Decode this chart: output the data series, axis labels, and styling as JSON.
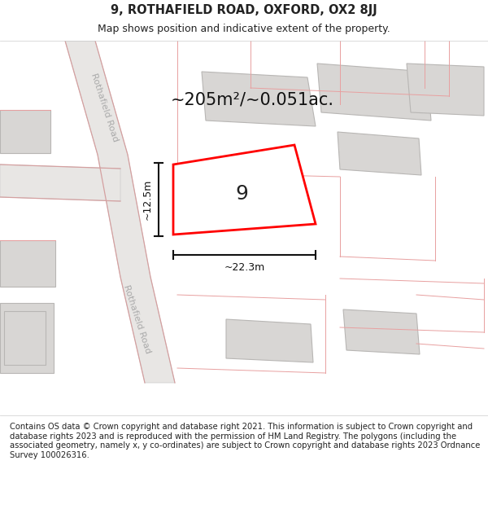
{
  "title": "9, ROTHAFIELD ROAD, OXFORD, OX2 8JJ",
  "subtitle": "Map shows position and indicative extent of the property.",
  "footer": "Contains OS data © Crown copyright and database right 2021. This information is subject to Crown copyright and database rights 2023 and is reproduced with the permission of HM Land Registry. The polygons (including the associated geometry, namely x, y co-ordinates) are subject to Crown copyright and database rights 2023 Ordnance Survey 100026316.",
  "map_bg": "#f5f4f2",
  "title_bg": "#ffffff",
  "footer_bg": "#ffffff",
  "building_fill": "#d8d6d4",
  "building_edge": "#b8b6b4",
  "road_fill": "#e8e6e4",
  "road_edge": "#cccccc",
  "pink_line": "#e8a0a0",
  "plot_color": "#ff0000",
  "plot_label": "9",
  "area_label": "~205m²/~0.051ac.",
  "width_label": "~22.3m",
  "height_label": "~12.5m",
  "road_name_upper": "Rothafield Road",
  "road_name_lower": "Rothafield Road",
  "figsize": [
    6.0,
    6.25
  ],
  "dpi": 100
}
